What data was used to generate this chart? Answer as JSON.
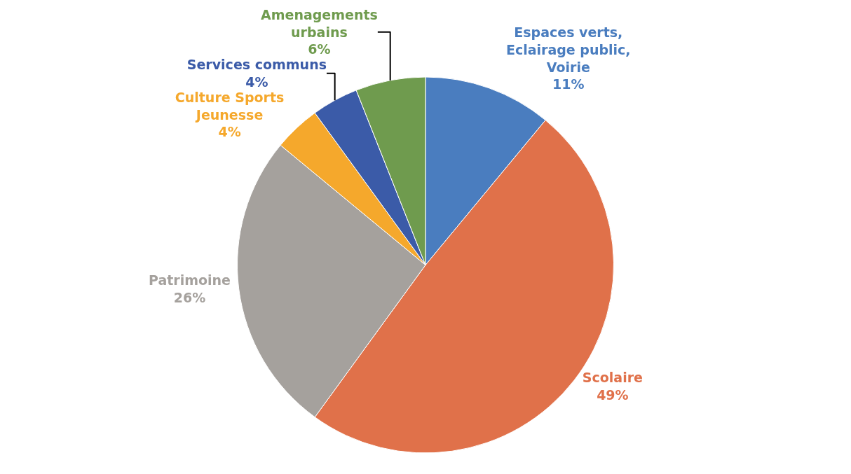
{
  "chart_data": {
    "type": "pie",
    "categories": [
      "Espaces verts,\nEclairage public,\nVoirie",
      "Scolaire",
      "Patrimoine",
      "Culture Sports\nJeunesse",
      "Services communs",
      "Amenagements\nurbains"
    ],
    "values": [
      11,
      49,
      26,
      4,
      4,
      6
    ],
    "colors": [
      "#4a7dbf",
      "#e0714a",
      "#a5a19d",
      "#f5a82c",
      "#3b5ba8",
      "#6f9b4e"
    ],
    "value_labels": [
      "11%",
      "49%",
      "26%",
      "4%",
      "4%",
      "6%"
    ],
    "legend": false
  }
}
